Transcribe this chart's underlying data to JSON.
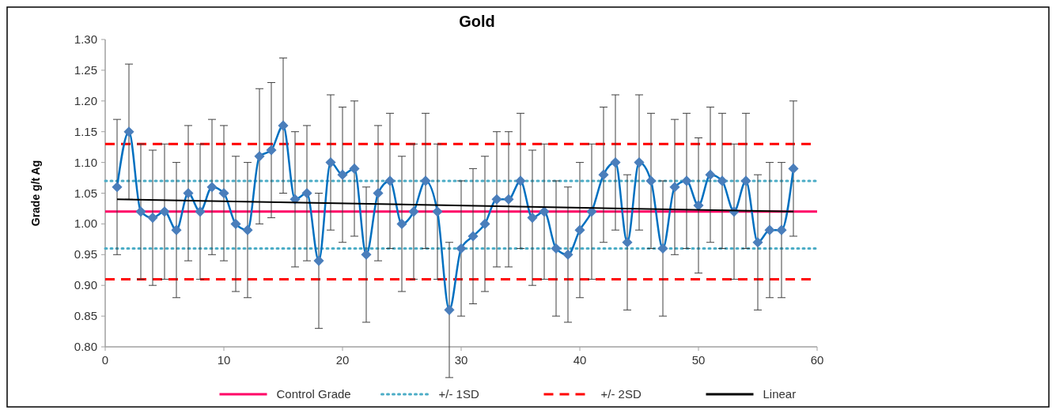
{
  "chart_data": {
    "type": "line",
    "title": "Gold",
    "ylabel": "Grade g/t Ag",
    "xlim": [
      0,
      60
    ],
    "xticks": [
      0,
      10,
      20,
      30,
      40,
      50,
      60
    ],
    "ylim": [
      0.8,
      1.3
    ],
    "yticks": [
      {
        "value": 0.8,
        "label": "0.80"
      },
      {
        "value": 0.85,
        "label": "0.85"
      },
      {
        "value": 0.9,
        "label": "0.90"
      },
      {
        "value": 0.95,
        "label": "0.95"
      },
      {
        "value": 1.0,
        "label": "1.00"
      },
      {
        "value": 1.05,
        "label": "1.05"
      },
      {
        "value": 1.1,
        "label": "1.10"
      },
      {
        "value": 1.15,
        "label": "1.15"
      },
      {
        "value": 1.2,
        "label": "1.20"
      },
      {
        "value": 1.25,
        "label": "1.25"
      },
      {
        "value": 1.3,
        "label": "1.30"
      }
    ],
    "grid": false,
    "legend": "bottom",
    "ref_lines": [
      {
        "axis": "y",
        "value": 1.02,
        "label": "Control Grade",
        "color": "#ff0066",
        "line_style": "solid"
      },
      {
        "axis": "y",
        "value": 1.07,
        "label": "+/- 1SD",
        "color": "#4bacc6",
        "line_style": "dotted"
      },
      {
        "axis": "y",
        "value": 0.96,
        "color": "#4bacc6",
        "line_style": "dotted"
      },
      {
        "axis": "y",
        "value": 1.13,
        "label": "+/- 2SD",
        "color": "#ff0000",
        "line_style": "dashed"
      },
      {
        "axis": "y",
        "value": 0.91,
        "color": "#ff0000",
        "line_style": "dashed"
      }
    ],
    "series": [
      {
        "color": "#4a7ebb",
        "marker": "diamond",
        "line_style": "solid",
        "x": [
          1,
          2,
          3,
          4,
          5,
          6,
          7,
          8,
          9,
          10,
          11,
          12,
          13,
          14,
          15,
          16,
          17,
          18,
          19,
          20,
          21,
          22,
          23,
          24,
          25,
          26,
          27,
          28,
          29,
          30,
          31,
          32,
          33,
          34,
          35,
          36,
          37,
          38,
          39,
          40,
          41,
          42,
          43,
          44,
          45,
          46,
          47,
          48,
          49,
          50,
          51,
          52,
          53,
          54,
          55,
          56,
          57,
          58
        ],
        "values": [
          1.06,
          1.15,
          1.02,
          1.01,
          1.02,
          0.99,
          1.05,
          1.02,
          1.06,
          1.05,
          1.0,
          0.99,
          1.11,
          1.12,
          1.16,
          1.04,
          1.05,
          0.94,
          1.1,
          1.08,
          1.09,
          0.95,
          1.05,
          1.07,
          1.0,
          1.02,
          1.07,
          1.02,
          0.86,
          0.96,
          0.98,
          1.0,
          1.04,
          1.04,
          1.07,
          1.01,
          1.02,
          0.96,
          0.95,
          0.99,
          1.02,
          1.08,
          1.1,
          0.97,
          1.1,
          1.07,
          0.96,
          1.06,
          1.07,
          1.03,
          1.08,
          1.07,
          1.02,
          1.07,
          0.97,
          0.99,
          0.99,
          1.09
        ],
        "errors": [
          0.11,
          0.11,
          0.11,
          0.11,
          0.11,
          0.11,
          0.11,
          0.11,
          0.11,
          0.11,
          0.11,
          0.11,
          0.11,
          0.11,
          0.11,
          0.11,
          0.11,
          0.11,
          0.11,
          0.11,
          0.11,
          0.11,
          0.11,
          0.11,
          0.11,
          0.11,
          0.11,
          0.11,
          0.11,
          0.11,
          0.11,
          0.11,
          0.11,
          0.11,
          0.11,
          0.11,
          0.11,
          0.11,
          0.11,
          0.11,
          0.11,
          0.11,
          0.11,
          0.11,
          0.11,
          0.11,
          0.11,
          0.11,
          0.11,
          0.11,
          0.11,
          0.11,
          0.11,
          0.11,
          0.11,
          0.11,
          0.11,
          0.11
        ]
      },
      {
        "name": "Linear",
        "color": "#000000",
        "marker": "none",
        "line_style": "solid",
        "x": [
          1,
          58
        ],
        "values": [
          1.04,
          1.02
        ]
      }
    ]
  }
}
